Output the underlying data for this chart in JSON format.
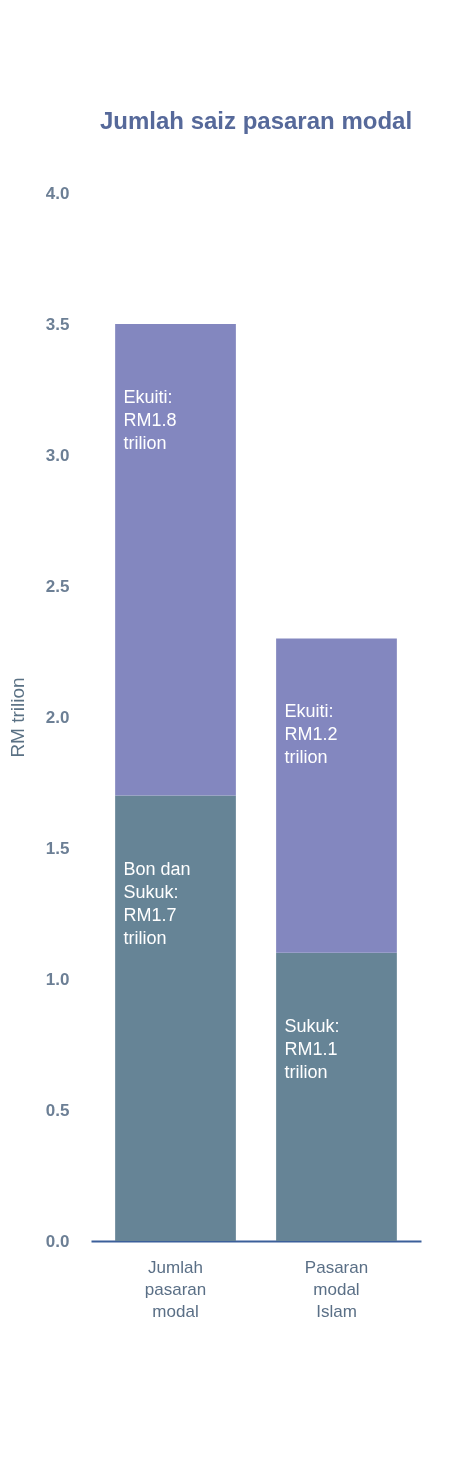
{
  "chart_data": {
    "type": "bar",
    "stacked": true,
    "title": "Jumlah saiz pasaran modal",
    "ylabel": "RM trilion",
    "categories": [
      "Jumlah pasaran modal",
      "Pasaran modal Islam"
    ],
    "series": [
      {
        "color": "#668496",
        "values": [
          1.7,
          1.1
        ],
        "value_labels": [
          "Bon dan\nSukuk:\nRM1.7\ntrilion",
          "Sukuk:\nRM1.1\ntrilion"
        ]
      },
      {
        "color": "#8387bf",
        "values": [
          1.8,
          1.2
        ],
        "value_labels": [
          "Ekuiti:\nRM1.8\ntrilion",
          "Ekuiti:\nRM1.2\ntrilion"
        ]
      }
    ],
    "ylim": [
      0,
      4
    ],
    "yticks": [
      {
        "value": 0,
        "label": "0.0"
      },
      {
        "value": 0.5,
        "label": "0.5"
      },
      {
        "value": 1,
        "label": "1.0"
      },
      {
        "value": 1.5,
        "label": "1.5"
      },
      {
        "value": 2,
        "label": "2.0"
      },
      {
        "value": 2.5,
        "label": "2.5"
      },
      {
        "value": 3,
        "label": "3.0"
      },
      {
        "value": 3.5,
        "label": "3.5"
      },
      {
        "value": 4,
        "label": "4.0"
      }
    ],
    "grid": false,
    "legend": false
  }
}
